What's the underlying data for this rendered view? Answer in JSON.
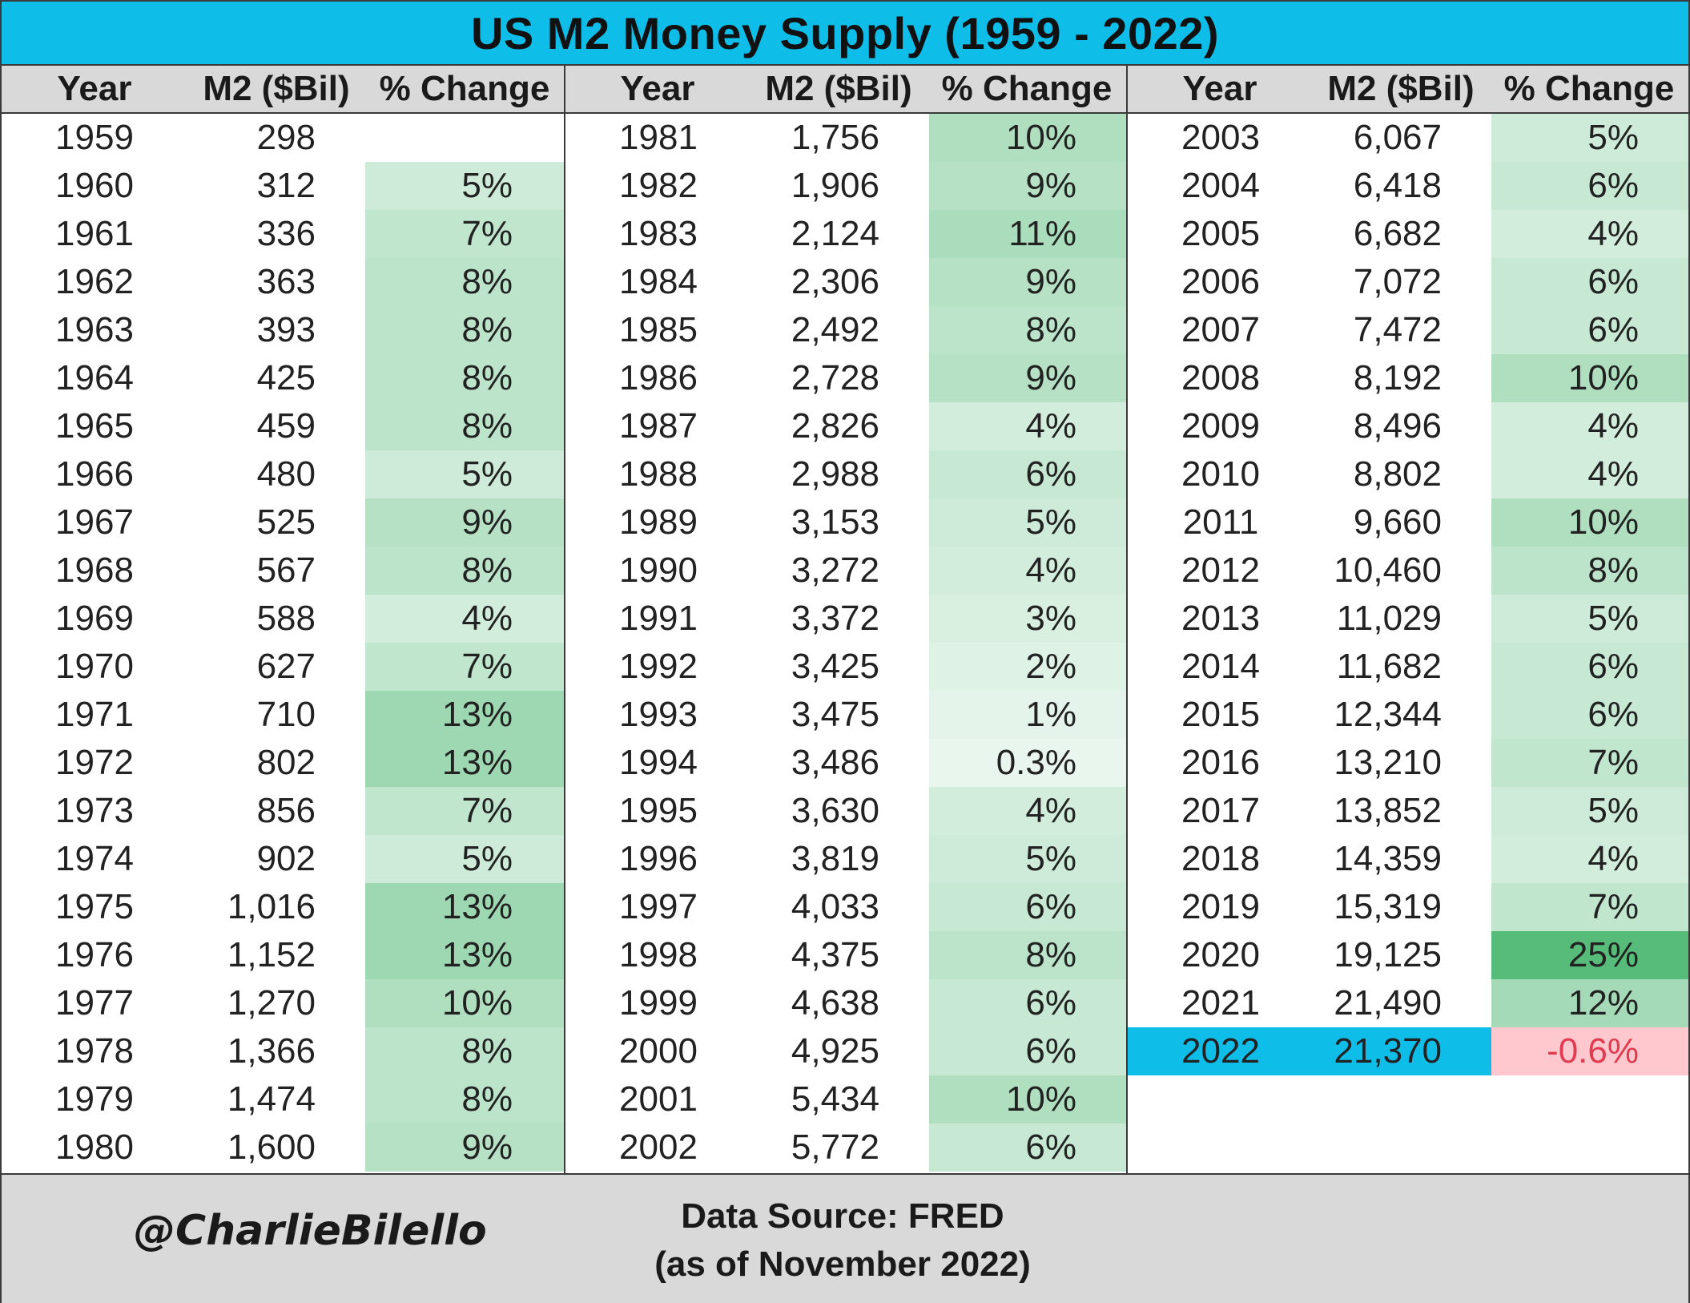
{
  "title": "US M2 Money Supply (1959 - 2022)",
  "headers": {
    "year": "Year",
    "m2": "M2 ($Bil)",
    "pct": "% Change"
  },
  "chart_data": {
    "type": "table",
    "title": "US M2 Money Supply (1959 - 2022)",
    "columns": [
      "Year",
      "M2 ($Bil)",
      "% Change"
    ],
    "rows": [
      [
        "1959",
        "298",
        ""
      ],
      [
        "1960",
        "312",
        "5%"
      ],
      [
        "1961",
        "336",
        "7%"
      ],
      [
        "1962",
        "363",
        "8%"
      ],
      [
        "1963",
        "393",
        "8%"
      ],
      [
        "1964",
        "425",
        "8%"
      ],
      [
        "1965",
        "459",
        "8%"
      ],
      [
        "1966",
        "480",
        "5%"
      ],
      [
        "1967",
        "525",
        "9%"
      ],
      [
        "1968",
        "567",
        "8%"
      ],
      [
        "1969",
        "588",
        "4%"
      ],
      [
        "1970",
        "627",
        "7%"
      ],
      [
        "1971",
        "710",
        "13%"
      ],
      [
        "1972",
        "802",
        "13%"
      ],
      [
        "1973",
        "856",
        "7%"
      ],
      [
        "1974",
        "902",
        "5%"
      ],
      [
        "1975",
        "1,016",
        "13%"
      ],
      [
        "1976",
        "1,152",
        "13%"
      ],
      [
        "1977",
        "1,270",
        "10%"
      ],
      [
        "1978",
        "1,366",
        "8%"
      ],
      [
        "1979",
        "1,474",
        "8%"
      ],
      [
        "1980",
        "1,600",
        "9%"
      ],
      [
        "1981",
        "1,756",
        "10%"
      ],
      [
        "1982",
        "1,906",
        "9%"
      ],
      [
        "1983",
        "2,124",
        "11%"
      ],
      [
        "1984",
        "2,306",
        "9%"
      ],
      [
        "1985",
        "2,492",
        "8%"
      ],
      [
        "1986",
        "2,728",
        "9%"
      ],
      [
        "1987",
        "2,826",
        "4%"
      ],
      [
        "1988",
        "2,988",
        "6%"
      ],
      [
        "1989",
        "3,153",
        "5%"
      ],
      [
        "1990",
        "3,272",
        "4%"
      ],
      [
        "1991",
        "3,372",
        "3%"
      ],
      [
        "1992",
        "3,425",
        "2%"
      ],
      [
        "1993",
        "3,475",
        "1%"
      ],
      [
        "1994",
        "3,486",
        "0.3%"
      ],
      [
        "1995",
        "3,630",
        "4%"
      ],
      [
        "1996",
        "3,819",
        "5%"
      ],
      [
        "1997",
        "4,033",
        "6%"
      ],
      [
        "1998",
        "4,375",
        "8%"
      ],
      [
        "1999",
        "4,638",
        "6%"
      ],
      [
        "2000",
        "4,925",
        "6%"
      ],
      [
        "2001",
        "5,434",
        "10%"
      ],
      [
        "2002",
        "5,772",
        "6%"
      ],
      [
        "2003",
        "6,067",
        "5%"
      ],
      [
        "2004",
        "6,418",
        "6%"
      ],
      [
        "2005",
        "6,682",
        "4%"
      ],
      [
        "2006",
        "7,072",
        "6%"
      ],
      [
        "2007",
        "7,472",
        "6%"
      ],
      [
        "2008",
        "8,192",
        "10%"
      ],
      [
        "2009",
        "8,496",
        "4%"
      ],
      [
        "2010",
        "8,802",
        "4%"
      ],
      [
        "2011",
        "9,660",
        "10%"
      ],
      [
        "2012",
        "10,460",
        "8%"
      ],
      [
        "2013",
        "11,029",
        "5%"
      ],
      [
        "2014",
        "11,682",
        "6%"
      ],
      [
        "2015",
        "12,344",
        "6%"
      ],
      [
        "2016",
        "13,210",
        "7%"
      ],
      [
        "2017",
        "13,852",
        "5%"
      ],
      [
        "2018",
        "14,359",
        "4%"
      ],
      [
        "2019",
        "15,319",
        "7%"
      ],
      [
        "2020",
        "19,125",
        "25%"
      ],
      [
        "2021",
        "21,490",
        "12%"
      ],
      [
        "2022",
        "21,370",
        "-0.6%"
      ]
    ],
    "pct_values": [
      null,
      5,
      7,
      8,
      8,
      8,
      8,
      5,
      9,
      8,
      4,
      7,
      13,
      13,
      7,
      5,
      13,
      13,
      10,
      8,
      8,
      9,
      10,
      9,
      11,
      9,
      8,
      9,
      4,
      6,
      5,
      4,
      3,
      2,
      1,
      0.3,
      4,
      5,
      6,
      8,
      6,
      6,
      10,
      6,
      5,
      6,
      4,
      6,
      6,
      10,
      4,
      4,
      10,
      8,
      5,
      6,
      6,
      7,
      5,
      4,
      7,
      25,
      12,
      -0.6
    ],
    "highlight_year": "2022",
    "colors": {
      "title_bg": "#0fbde9",
      "header_bg": "#d9d9d9",
      "highlight_bg": "#0fbde9",
      "negative_bg": "#ffc7ce",
      "negative_text": "#e23b4f",
      "positive_max": "#57bb7a",
      "positive_min": "#ffffff"
    }
  },
  "footer": {
    "handle": "@CharlieBilello",
    "source_line1": "Data Source: FRED",
    "source_line2": "(as of November 2022)"
  }
}
